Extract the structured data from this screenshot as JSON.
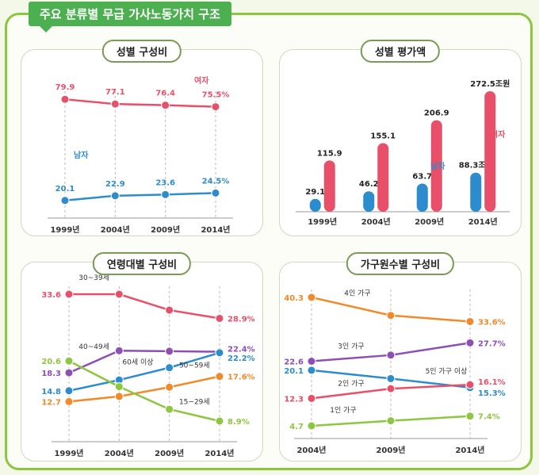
{
  "main_title": "주요 분류별 무급 가사노동가치 구조",
  "chart_data": [
    {
      "type": "line",
      "title": "성별 구성비",
      "categories": [
        "1999년",
        "2004년",
        "2009년",
        "2014년"
      ],
      "series": [
        {
          "name": "여자",
          "color": "#e8506a",
          "values": [
            79.9,
            77.1,
            76.4,
            75.5
          ],
          "labels": [
            "79.9",
            "77.1",
            "76.4",
            "75.5%"
          ]
        },
        {
          "name": "남자",
          "color": "#2d8ccd",
          "values": [
            20.1,
            22.9,
            23.6,
            24.5
          ],
          "labels": [
            "20.1",
            "22.9",
            "23.6",
            "24.5%"
          ]
        }
      ]
    },
    {
      "type": "bar",
      "title": "성별 평가액",
      "categories": [
        "1999년",
        "2004년",
        "2009년",
        "2014년"
      ],
      "series": [
        {
          "name": "남자",
          "color": "#2d8ccd",
          "values": [
            29.1,
            46.2,
            63.7,
            88.3
          ],
          "labels": [
            "29.1",
            "46.2",
            "63.7",
            "88.3조원"
          ]
        },
        {
          "name": "여자",
          "color": "#e8506a",
          "values": [
            115.9,
            155.1,
            206.9,
            272.5
          ],
          "labels": [
            "115.9",
            "155.1",
            "206.9",
            "272.5조원"
          ]
        }
      ]
    },
    {
      "type": "line",
      "title": "연령대별 구성비",
      "categories": [
        "1999년",
        "2004년",
        "2009년",
        "2014년"
      ],
      "series": [
        {
          "name": "30~39세",
          "color": "#e8506a",
          "values": [
            33.6,
            33.6,
            30.5,
            28.9
          ],
          "labels": [
            "33.6",
            "",
            "",
            "28.9%"
          ]
        },
        {
          "name": "40~49세",
          "color": "#8e4fb5",
          "values": [
            18.3,
            22.6,
            22.5,
            22.4
          ],
          "labels": [
            "18.3",
            "",
            "",
            "22.4%"
          ]
        },
        {
          "name": "60세 이상",
          "color": "#2d8ccd",
          "values": [
            14.8,
            16.9,
            19.3,
            22.2
          ],
          "labels": [
            "14.8",
            "",
            "",
            "22.2%"
          ]
        },
        {
          "name": "50~59세",
          "color": "#f08a2a",
          "values": [
            12.7,
            13.7,
            15.5,
            17.6
          ],
          "labels": [
            "12.7",
            "",
            "",
            "17.6%"
          ]
        },
        {
          "name": "15~29세",
          "color": "#8dc63f",
          "values": [
            20.6,
            15.6,
            11.2,
            8.9
          ],
          "labels": [
            "20.6",
            "",
            "",
            "8.9%"
          ]
        }
      ]
    },
    {
      "type": "line",
      "title": "가구원수별 구성비",
      "categories": [
        "2004년",
        "2009년",
        "2014년"
      ],
      "series": [
        {
          "name": "4인 가구",
          "color": "#f08a2a",
          "values": [
            40.3,
            35.3,
            33.6
          ],
          "labels": [
            "40.3",
            "",
            "33.6%"
          ]
        },
        {
          "name": "3인 가구",
          "color": "#8e4fb5",
          "values": [
            22.6,
            24.3,
            27.7
          ],
          "labels": [
            "22.6",
            "",
            "27.7%"
          ]
        },
        {
          "name": "5인 가구 이상",
          "color": "#2d8ccd",
          "values": [
            20.1,
            17.8,
            15.3
          ],
          "labels": [
            "20.1",
            "",
            "15.3%"
          ]
        },
        {
          "name": "2인 가구",
          "color": "#e8506a",
          "values": [
            12.3,
            15.0,
            16.1
          ],
          "labels": [
            "12.3",
            "",
            "16.1%"
          ]
        },
        {
          "name": "1인 가구",
          "color": "#8dc63f",
          "values": [
            4.7,
            6.1,
            7.4
          ],
          "labels": [
            "4.7",
            "",
            "7.4%"
          ]
        }
      ]
    }
  ]
}
